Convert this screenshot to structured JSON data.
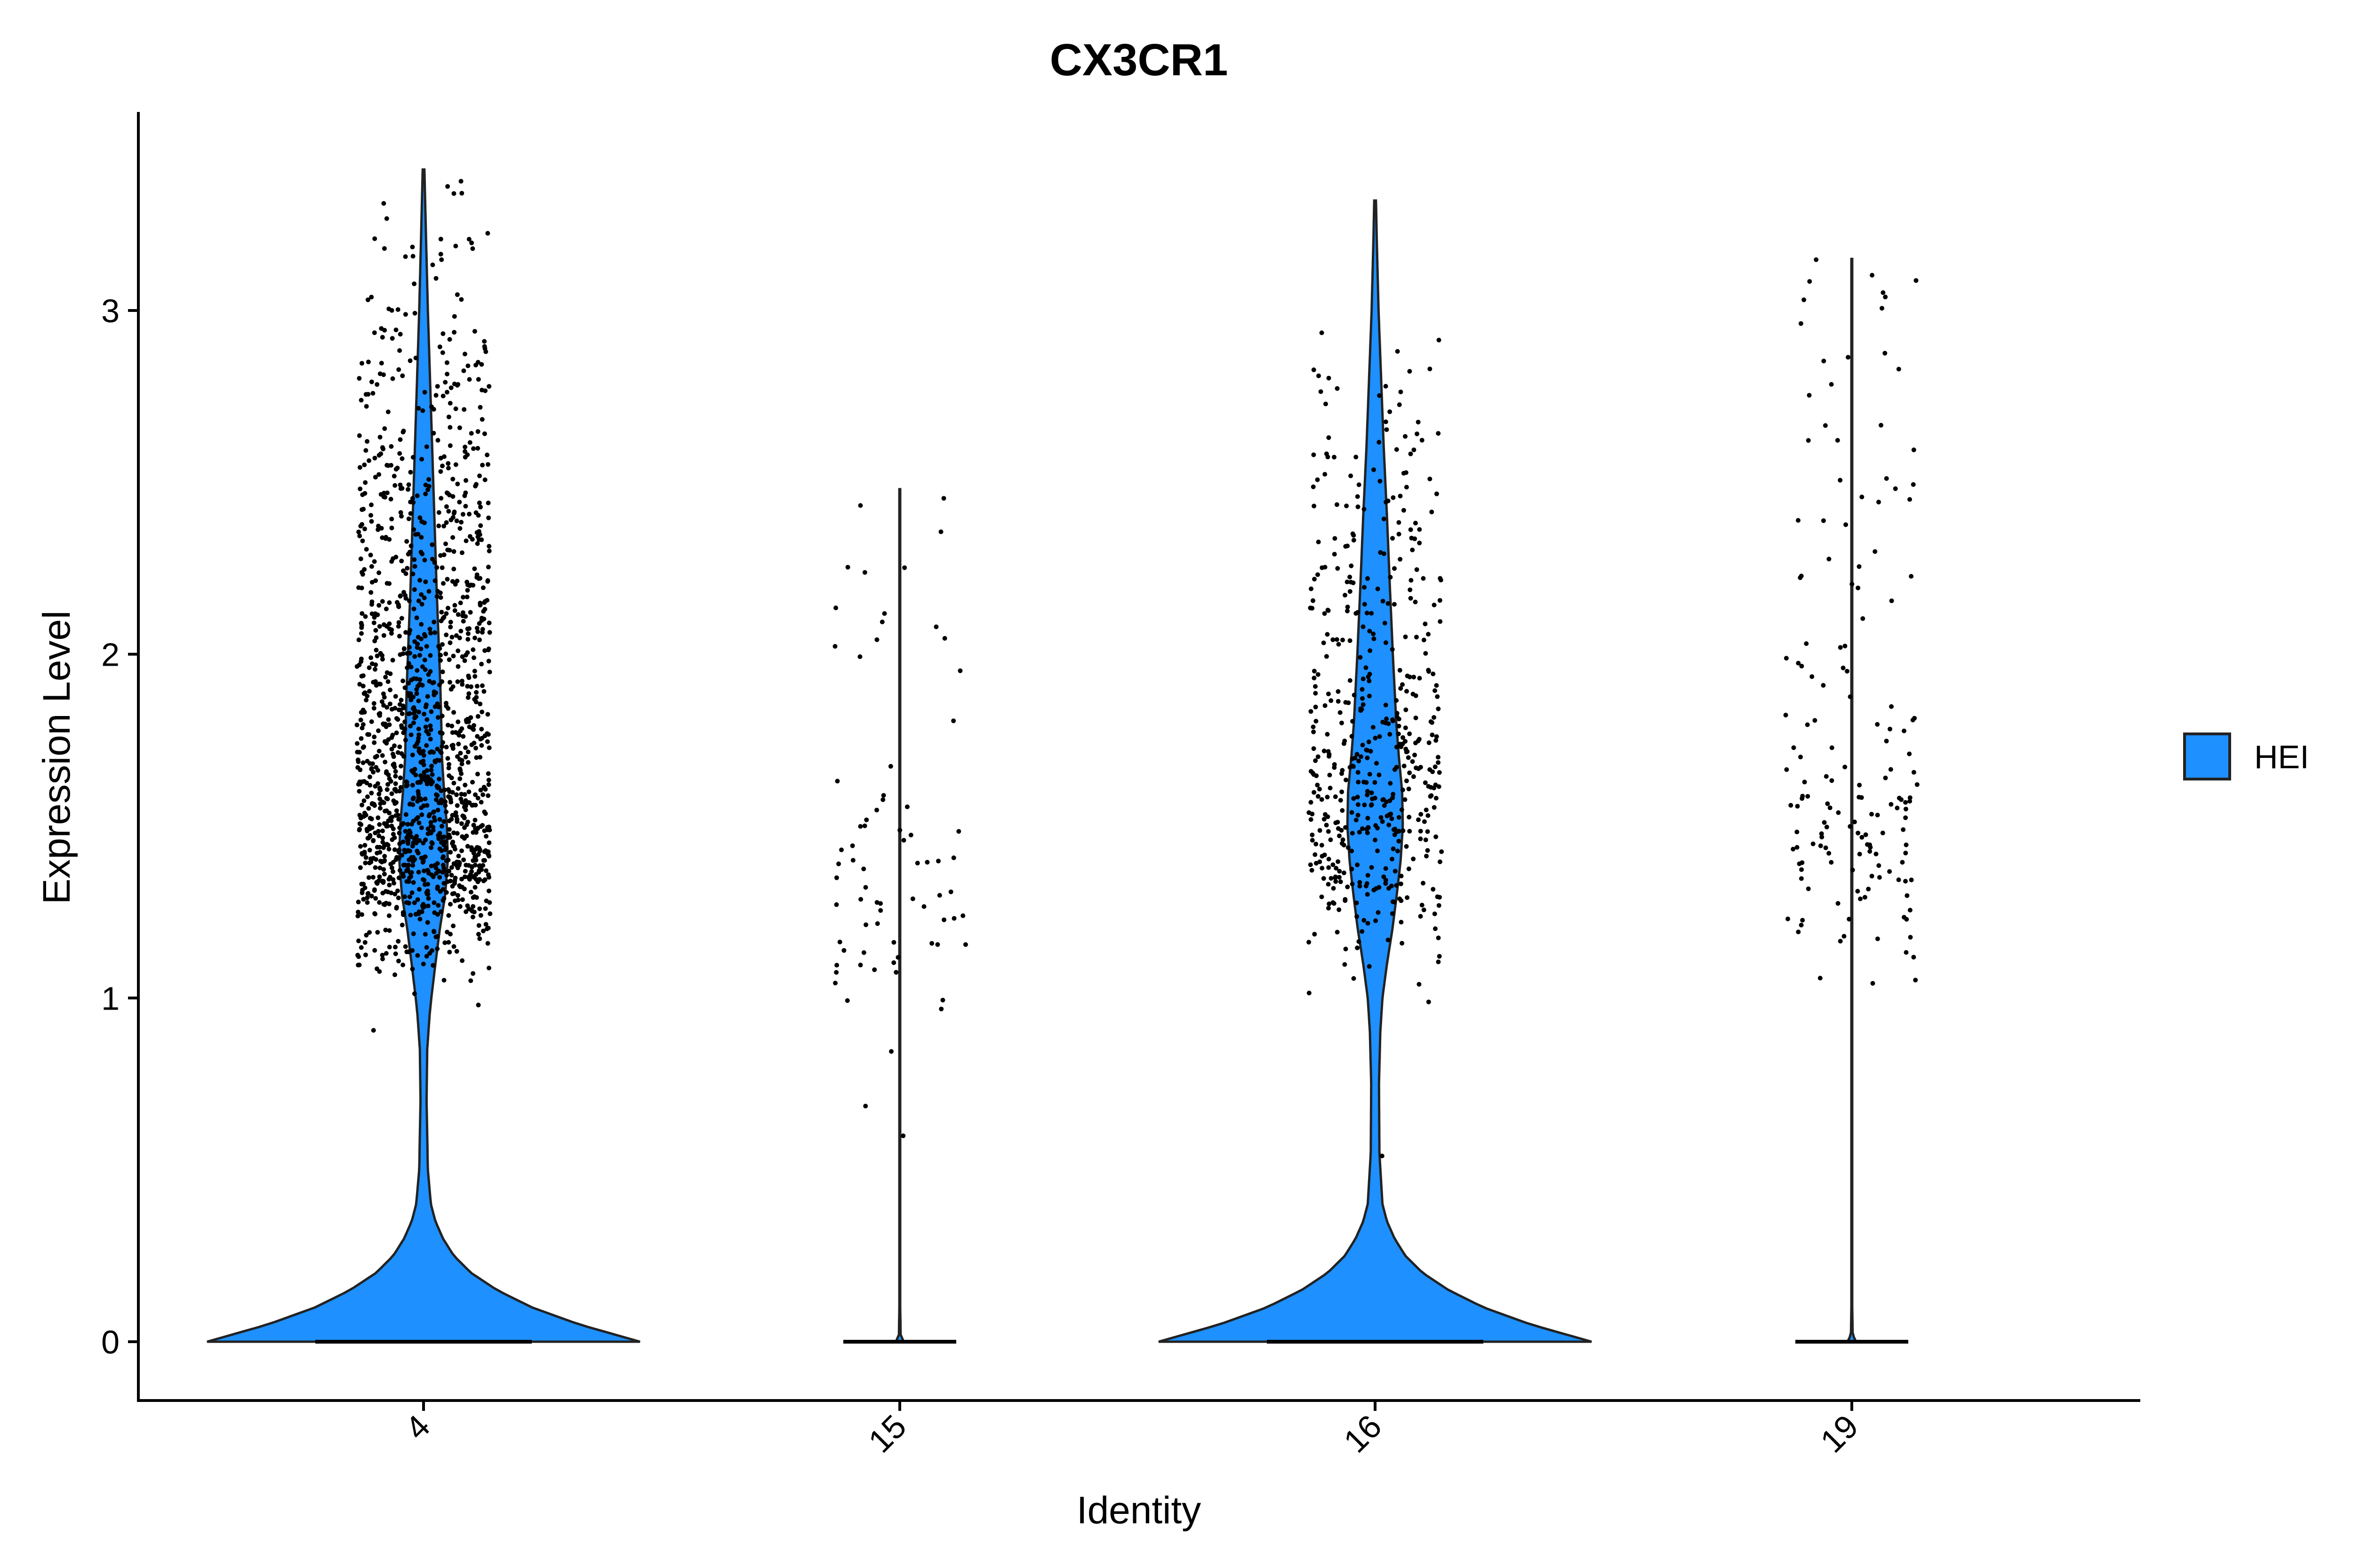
{
  "chart_data": {
    "type": "violin",
    "title": "CX3CR1",
    "xlabel": "Identity",
    "ylabel": "Expression Level",
    "categories": [
      "4",
      "15",
      "16",
      "19"
    ],
    "ylim": [
      -0.17,
      3.57
    ],
    "yticks": [
      "0",
      "1",
      "2",
      "3"
    ],
    "grid": false,
    "legend": {
      "position": "right",
      "entries": [
        {
          "name": "HEI",
          "color": "#1E90FF"
        }
      ]
    },
    "fill_color": "#1E90FF",
    "outline_color": "#222222",
    "point_color": "#000000",
    "violins": [
      {
        "category": "4",
        "max": 3.41,
        "zero_fraction": 0.45,
        "n_points": 1500,
        "point_spread": 0.14,
        "density": [
          [
            0.0,
            1.0
          ],
          [
            0.05,
            0.72
          ],
          [
            0.1,
            0.5
          ],
          [
            0.15,
            0.34
          ],
          [
            0.2,
            0.22
          ],
          [
            0.25,
            0.14
          ],
          [
            0.3,
            0.09
          ],
          [
            0.35,
            0.055
          ],
          [
            0.4,
            0.034
          ],
          [
            0.5,
            0.02
          ],
          [
            0.7,
            0.014
          ],
          [
            0.85,
            0.017
          ],
          [
            0.95,
            0.028
          ],
          [
            1.0,
            0.036
          ],
          [
            1.1,
            0.055
          ],
          [
            1.2,
            0.075
          ],
          [
            1.3,
            0.1
          ],
          [
            1.4,
            0.112
          ],
          [
            1.5,
            0.108
          ],
          [
            1.6,
            0.095
          ],
          [
            1.7,
            0.085
          ],
          [
            1.8,
            0.082
          ],
          [
            1.9,
            0.078
          ],
          [
            2.0,
            0.072
          ],
          [
            2.2,
            0.06
          ],
          [
            2.4,
            0.05
          ],
          [
            2.6,
            0.04
          ],
          [
            2.8,
            0.03
          ],
          [
            3.0,
            0.02
          ],
          [
            3.2,
            0.012
          ],
          [
            3.41,
            0.004
          ]
        ],
        "clusters": [
          {
            "mean": 1.45,
            "sd": 0.18,
            "weight": 0.45
          },
          {
            "mean": 1.95,
            "sd": 0.35,
            "weight": 0.4
          },
          {
            "mean": 2.6,
            "sd": 0.35,
            "weight": 0.15
          }
        ]
      },
      {
        "category": "15",
        "max": 2.48,
        "zero_fraction": 0.95,
        "n_points": 75,
        "point_spread": 0.14,
        "density": [
          [
            0.0,
            0.018
          ],
          [
            0.02,
            0.004
          ],
          [
            0.1,
            0.002
          ],
          [
            2.48,
            0.002
          ]
        ],
        "clusters": [
          {
            "mean": 1.3,
            "sd": 0.25,
            "weight": 0.85
          },
          {
            "mean": 2.1,
            "sd": 0.2,
            "weight": 0.15
          }
        ]
      },
      {
        "category": "16",
        "max": 3.32,
        "zero_fraction": 0.55,
        "n_points": 520,
        "point_spread": 0.14,
        "density": [
          [
            0.0,
            1.0
          ],
          [
            0.05,
            0.72
          ],
          [
            0.1,
            0.5
          ],
          [
            0.15,
            0.34
          ],
          [
            0.2,
            0.22
          ],
          [
            0.25,
            0.14
          ],
          [
            0.3,
            0.09
          ],
          [
            0.35,
            0.055
          ],
          [
            0.4,
            0.034
          ],
          [
            0.55,
            0.02
          ],
          [
            0.75,
            0.018
          ],
          [
            0.9,
            0.024
          ],
          [
            1.0,
            0.034
          ],
          [
            1.1,
            0.055
          ],
          [
            1.2,
            0.08
          ],
          [
            1.3,
            0.1
          ],
          [
            1.4,
            0.118
          ],
          [
            1.5,
            0.128
          ],
          [
            1.6,
            0.125
          ],
          [
            1.7,
            0.11
          ],
          [
            1.8,
            0.098
          ],
          [
            1.9,
            0.09
          ],
          [
            2.0,
            0.082
          ],
          [
            2.2,
            0.068
          ],
          [
            2.4,
            0.055
          ],
          [
            2.6,
            0.04
          ],
          [
            2.8,
            0.028
          ],
          [
            3.0,
            0.016
          ],
          [
            3.2,
            0.008
          ],
          [
            3.32,
            0.004
          ]
        ],
        "clusters": [
          {
            "mean": 1.5,
            "sd": 0.2,
            "weight": 0.55
          },
          {
            "mean": 2.05,
            "sd": 0.3,
            "weight": 0.35
          },
          {
            "mean": 2.6,
            "sd": 0.25,
            "weight": 0.1
          }
        ]
      },
      {
        "category": "19",
        "max": 3.15,
        "zero_fraction": 0.93,
        "n_points": 160,
        "point_spread": 0.14,
        "density": [
          [
            0.0,
            0.02
          ],
          [
            0.02,
            0.004
          ],
          [
            0.1,
            0.002
          ],
          [
            3.15,
            0.002
          ]
        ],
        "clusters": [
          {
            "mean": 1.45,
            "sd": 0.2,
            "weight": 0.55
          },
          {
            "mean": 2.1,
            "sd": 0.35,
            "weight": 0.35
          },
          {
            "mean": 2.7,
            "sd": 0.25,
            "weight": 0.1
          }
        ]
      }
    ]
  }
}
